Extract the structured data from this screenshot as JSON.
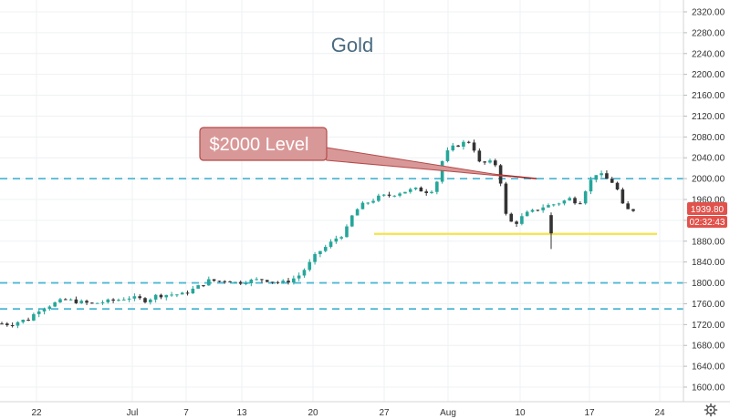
{
  "chart_data": {
    "type": "candlestick",
    "title": "Gold",
    "xlabel": "",
    "ylabel": "",
    "ylim": [
      1590,
      2330
    ],
    "y_ticks": [
      1600,
      1640,
      1680,
      1720,
      1760,
      1800,
      1840,
      1880,
      1920,
      1960,
      2000,
      2040,
      2080,
      2120,
      2160,
      2200,
      2240,
      2280,
      2320
    ],
    "y_tick_labels": [
      "1600.00",
      "1640.00",
      "1680.00",
      "1720.00",
      "1760.00",
      "1800.00",
      "1840.00",
      "1880.00",
      "1920.00",
      "1960.00",
      "2000.00",
      "2040.00",
      "2080.00",
      "2120.00",
      "2160.00",
      "2200.00",
      "2240.00",
      "2280.00",
      "2320.00"
    ],
    "x_tick_labels": [
      "22",
      "Jul",
      "7",
      "13",
      "20",
      "27",
      "Aug",
      "10",
      "17",
      "24"
    ],
    "horizontal_levels": [
      {
        "value": 2000,
        "style": "dashed",
        "color": "#4fb7d4"
      },
      {
        "value": 1800,
        "style": "dashed",
        "color": "#4fb7d4"
      },
      {
        "value": 1750,
        "style": "dashed",
        "color": "#4fb7d4"
      },
      {
        "value": 1894,
        "style": "solid",
        "color": "#f5e34a"
      }
    ],
    "annotation": {
      "text": "$2000 Level",
      "fill": "#d99898",
      "border": "#b54a4a",
      "pointer_color": "#a11c1c"
    },
    "last_price": "1939.80",
    "countdown": "02:32:43",
    "colors": {
      "up": "#26a69a",
      "down": "#333333",
      "last_price_bg": "#e0524b",
      "grid": "#eef0f3"
    },
    "price_path": [
      1722,
      1720,
      1727,
      1730,
      1748,
      1755,
      1762,
      1768,
      1765,
      1762,
      1760,
      1763,
      1765,
      1768,
      1772,
      1770,
      1766,
      1775,
      1777,
      1778,
      1778,
      1786,
      1795,
      1805,
      1803,
      1806,
      1800,
      1803,
      1805,
      1807,
      1803,
      1800,
      1805,
      1815,
      1835,
      1858,
      1870,
      1885,
      1895,
      1935,
      1950,
      1958,
      1966,
      1968,
      1973,
      1977,
      1980,
      1975,
      1980,
      2045,
      2060,
      2068,
      2072,
      2028,
      2032,
      2025,
      1918,
      1915,
      1932,
      1938,
      1946,
      1950,
      1955,
      1962,
      1952,
      1990,
      2012,
      2000,
      1990,
      1940,
      1940
    ],
    "candles": [
      {
        "x": 0,
        "o": 1725,
        "h": 1733,
        "l": 1716,
        "c": 1722
      },
      {
        "x": 0.6,
        "o": 1722,
        "h": 1729,
        "l": 1714,
        "c": 1720
      },
      {
        "x": 69,
        "o": 1936,
        "h": 1958,
        "l": 1932,
        "c": 1945
      },
      {
        "x": 69.4,
        "o": 1942,
        "h": 1948,
        "l": 1936,
        "c": 1940
      }
    ]
  }
}
